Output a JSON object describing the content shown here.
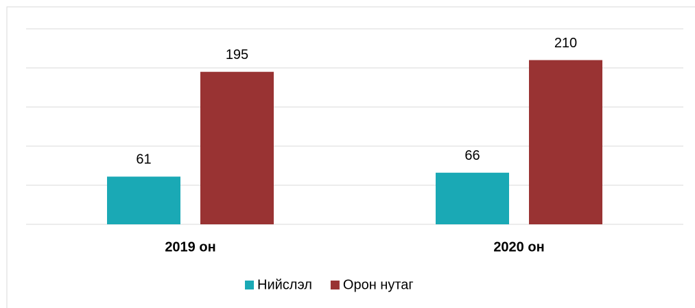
{
  "chart_data": {
    "type": "bar",
    "categories": [
      "2019 он",
      "2020 он"
    ],
    "series": [
      {
        "name": "Нийслэл",
        "color": "#1aa9b5",
        "values": [
          61,
          66
        ]
      },
      {
        "name": "Орон нутаг",
        "color": "#993333",
        "values": [
          195,
          210
        ]
      }
    ],
    "ylim": [
      0,
      250
    ],
    "yticks": [
      0,
      50,
      100,
      150,
      200,
      250
    ],
    "grid": true,
    "legend": "bottom"
  }
}
